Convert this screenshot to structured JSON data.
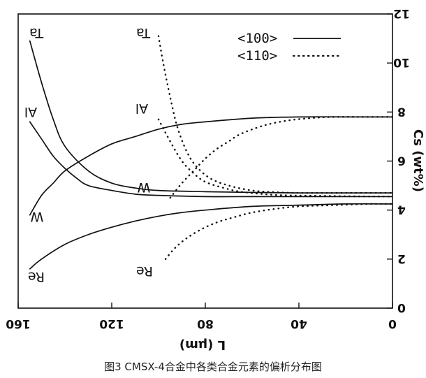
{
  "chart_data": {
    "type": "line",
    "xlabel": "L (μm)",
    "ylabel": "Cs (wt%)",
    "xlim": [
      160,
      0
    ],
    "ylim": [
      0,
      12
    ],
    "x_ticks": [
      "160",
      "120",
      "80",
      "40",
      "0"
    ],
    "y_ticks": [
      "0",
      "2",
      "4",
      "6",
      "8",
      "10",
      "12"
    ],
    "legend": {
      "placement": "top-right",
      "entries": [
        {
          "label": "<100>",
          "style": "solid"
        },
        {
          "label": "<110>",
          "style": "dotted"
        }
      ]
    },
    "caption": "图3 CMSX-4合金中各类合金元素的偏析分布图",
    "series": [
      {
        "name": "Ta",
        "orientation": "<100>",
        "style": "solid",
        "points": [
          [
            155,
            10.9
          ],
          [
            150,
            9.2
          ],
          [
            145,
            7.7
          ],
          [
            140,
            6.6
          ],
          [
            130,
            5.6
          ],
          [
            120,
            5.1
          ],
          [
            110,
            4.9
          ],
          [
            100,
            4.8
          ],
          [
            80,
            4.75
          ],
          [
            60,
            4.72
          ],
          [
            40,
            4.7
          ],
          [
            20,
            4.7
          ],
          [
            0,
            4.7
          ]
        ]
      },
      {
        "name": "Al",
        "orientation": "<100>",
        "style": "solid",
        "points": [
          [
            155,
            7.6
          ],
          [
            150,
            6.9
          ],
          [
            145,
            6.2
          ],
          [
            140,
            5.7
          ],
          [
            135,
            5.3
          ],
          [
            130,
            5.0
          ],
          [
            120,
            4.8
          ],
          [
            110,
            4.65
          ],
          [
            100,
            4.6
          ],
          [
            80,
            4.55
          ],
          [
            60,
            4.55
          ],
          [
            40,
            4.55
          ],
          [
            20,
            4.55
          ],
          [
            0,
            4.55
          ]
        ]
      },
      {
        "name": "W",
        "orientation": "<100>",
        "style": "solid",
        "points": [
          [
            155,
            3.8
          ],
          [
            150,
            4.6
          ],
          [
            145,
            5.1
          ],
          [
            140,
            5.6
          ],
          [
            130,
            6.2
          ],
          [
            120,
            6.7
          ],
          [
            110,
            7.0
          ],
          [
            100,
            7.3
          ],
          [
            90,
            7.5
          ],
          [
            80,
            7.6
          ],
          [
            60,
            7.75
          ],
          [
            40,
            7.8
          ],
          [
            20,
            7.8
          ],
          [
            0,
            7.8
          ]
        ]
      },
      {
        "name": "Re",
        "orientation": "<100>",
        "style": "solid",
        "points": [
          [
            155,
            1.6
          ],
          [
            150,
            2.0
          ],
          [
            140,
            2.6
          ],
          [
            130,
            3.0
          ],
          [
            120,
            3.3
          ],
          [
            110,
            3.55
          ],
          [
            100,
            3.75
          ],
          [
            90,
            3.9
          ],
          [
            80,
            4.0
          ],
          [
            60,
            4.15
          ],
          [
            40,
            4.2
          ],
          [
            20,
            4.25
          ],
          [
            0,
            4.25
          ]
        ]
      },
      {
        "name": "Ta",
        "orientation": "<110>",
        "style": "dotted",
        "points": [
          [
            100,
            11.1
          ],
          [
            98,
            10.0
          ],
          [
            95,
            8.6
          ],
          [
            92,
            7.4
          ],
          [
            88,
            6.4
          ],
          [
            84,
            5.8
          ],
          [
            78,
            5.3
          ],
          [
            70,
            5.0
          ],
          [
            60,
            4.8
          ],
          [
            50,
            4.73
          ],
          [
            40,
            4.7
          ],
          [
            20,
            4.7
          ],
          [
            0,
            4.7
          ]
        ]
      },
      {
        "name": "Al",
        "orientation": "<110>",
        "style": "dotted",
        "points": [
          [
            100,
            7.7
          ],
          [
            95,
            6.8
          ],
          [
            90,
            6.0
          ],
          [
            85,
            5.5
          ],
          [
            80,
            5.15
          ],
          [
            72,
            4.9
          ],
          [
            65,
            4.75
          ],
          [
            55,
            4.65
          ],
          [
            45,
            4.6
          ],
          [
            30,
            4.58
          ],
          [
            15,
            4.56
          ],
          [
            0,
            4.55
          ]
        ]
      },
      {
        "name": "W",
        "orientation": "<110>",
        "style": "dotted",
        "points": [
          [
            95,
            4.5
          ],
          [
            90,
            5.1
          ],
          [
            85,
            5.6
          ],
          [
            80,
            6.1
          ],
          [
            75,
            6.5
          ],
          [
            70,
            6.8
          ],
          [
            65,
            7.1
          ],
          [
            55,
            7.45
          ],
          [
            45,
            7.65
          ],
          [
            35,
            7.75
          ],
          [
            25,
            7.8
          ],
          [
            10,
            7.8
          ],
          [
            0,
            7.8
          ]
        ]
      },
      {
        "name": "Re",
        "orientation": "<110>",
        "style": "dotted",
        "points": [
          [
            97,
            2.0
          ],
          [
            93,
            2.45
          ],
          [
            88,
            2.85
          ],
          [
            82,
            3.2
          ],
          [
            75,
            3.5
          ],
          [
            68,
            3.7
          ],
          [
            60,
            3.9
          ],
          [
            50,
            4.05
          ],
          [
            40,
            4.15
          ],
          [
            25,
            4.2
          ],
          [
            10,
            4.25
          ],
          [
            0,
            4.25
          ]
        ]
      }
    ]
  }
}
